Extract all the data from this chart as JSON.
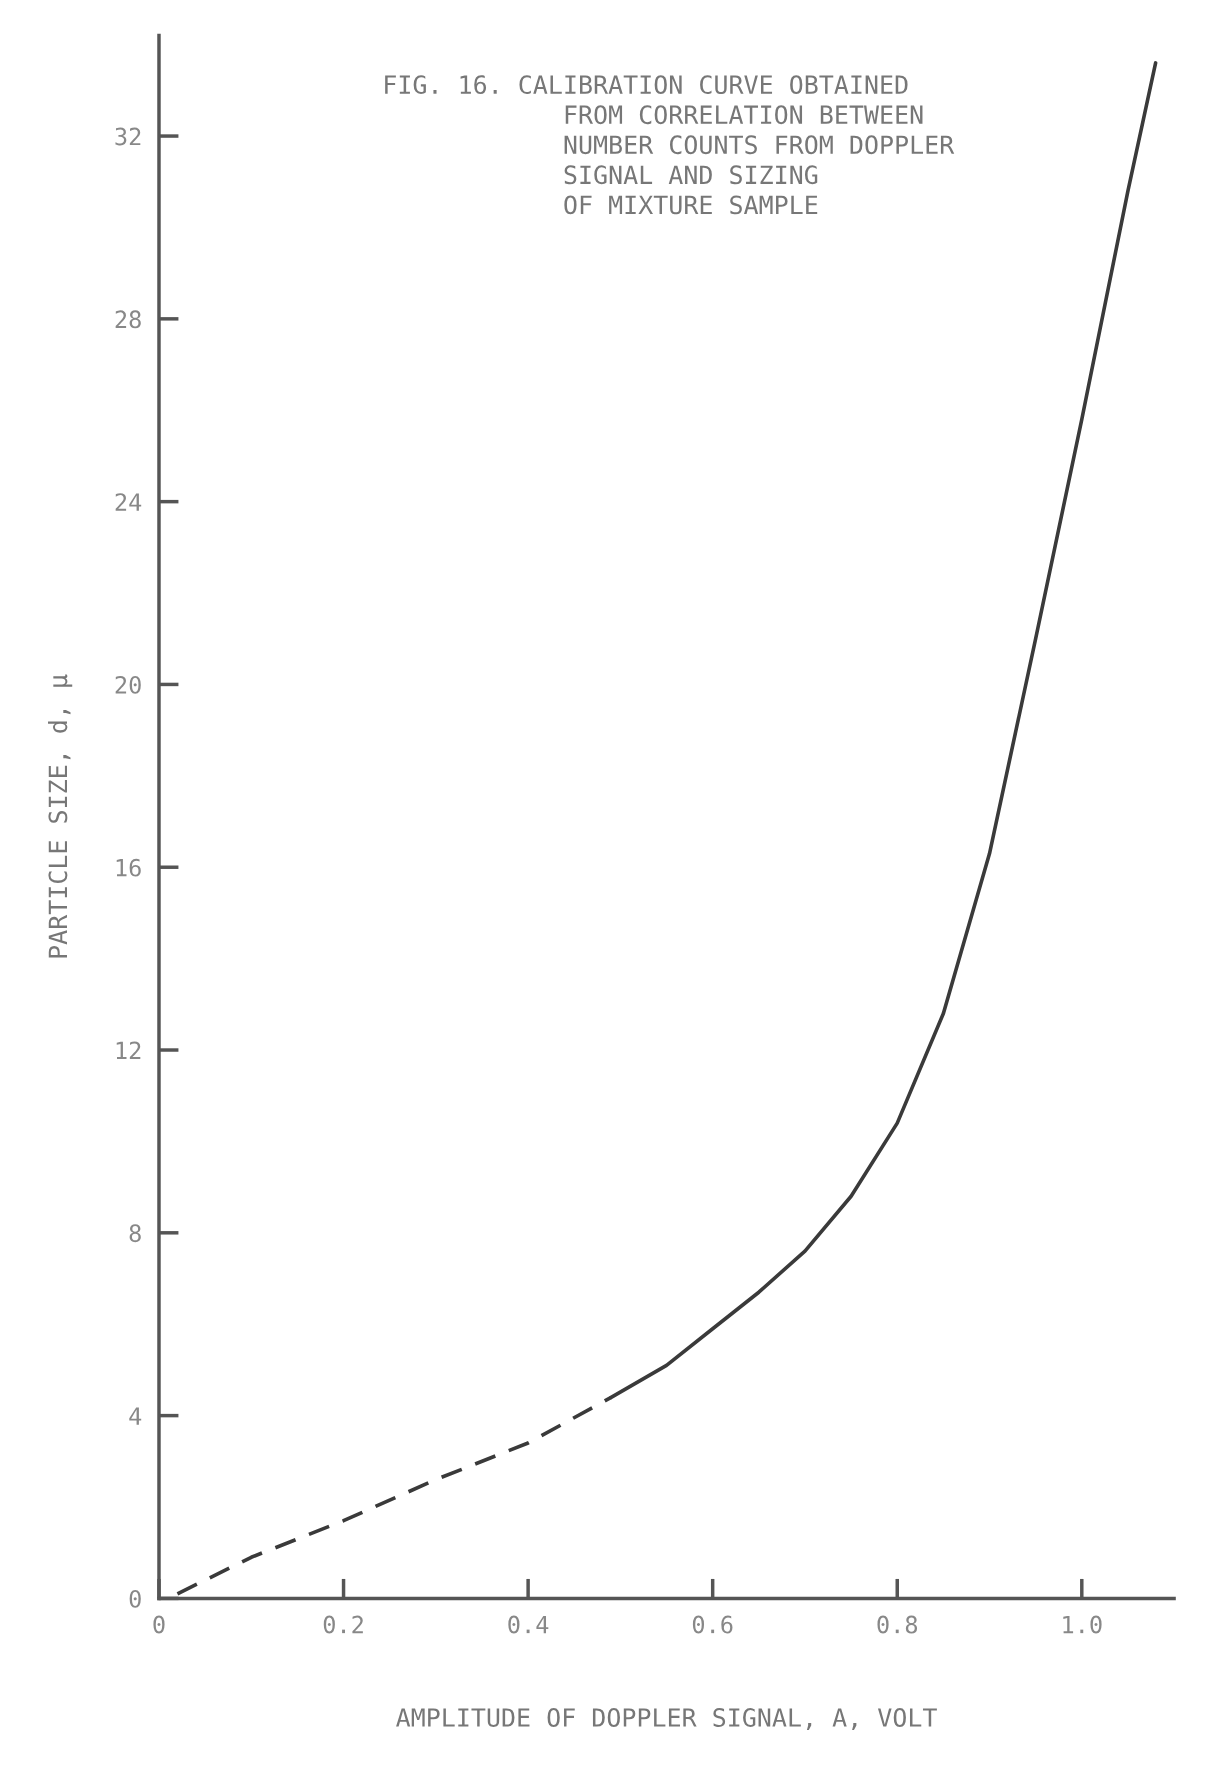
{
  "chart_data": {
    "type": "line",
    "title": "FIG. 16. CALIBRATION CURVE OBTAINED\n            FROM CORRELATION BETWEEN\n            NUMBER COUNTS FROM DOPPLER\n            SIGNAL AND SIZING\n            OF MIXTURE SAMPLE",
    "xlabel": "AMPLITUDE OF DOPPLER SIGNAL, A, VOLT",
    "ylabel": "PARTICLE SIZE, d, μ",
    "series": [
      {
        "color": "#3a3a3a",
        "line_style": "dashed",
        "x": [
          0.02,
          0.1,
          0.2,
          0.3,
          0.4,
          0.49
        ],
        "values": [
          0.1,
          0.9,
          1.7,
          2.6,
          3.4,
          4.4
        ]
      },
      {
        "color": "#3a3a3a",
        "line_style": "solid",
        "x": [
          0.49,
          0.55,
          0.6,
          0.65,
          0.7,
          0.75,
          0.8,
          0.85,
          0.9,
          0.95,
          1.0,
          1.05,
          1.08
        ],
        "values": [
          4.4,
          5.1,
          5.9,
          6.7,
          7.6,
          8.8,
          10.4,
          12.8,
          16.3,
          21,
          25.8,
          30.8,
          33.6
        ]
      }
    ],
    "xlim": [
      0,
      1.1
    ],
    "ylim": [
      0,
      34.2
    ],
    "xticks": [
      {
        "value": 0,
        "label": "0"
      },
      0.2,
      0.4,
      0.6,
      0.8,
      {
        "value": 1.0,
        "label": "1.0"
      }
    ],
    "yticks": [
      0,
      4,
      8,
      12,
      16,
      20,
      24,
      28,
      32
    ],
    "grid": false,
    "legend": false,
    "marker": "none"
  }
}
